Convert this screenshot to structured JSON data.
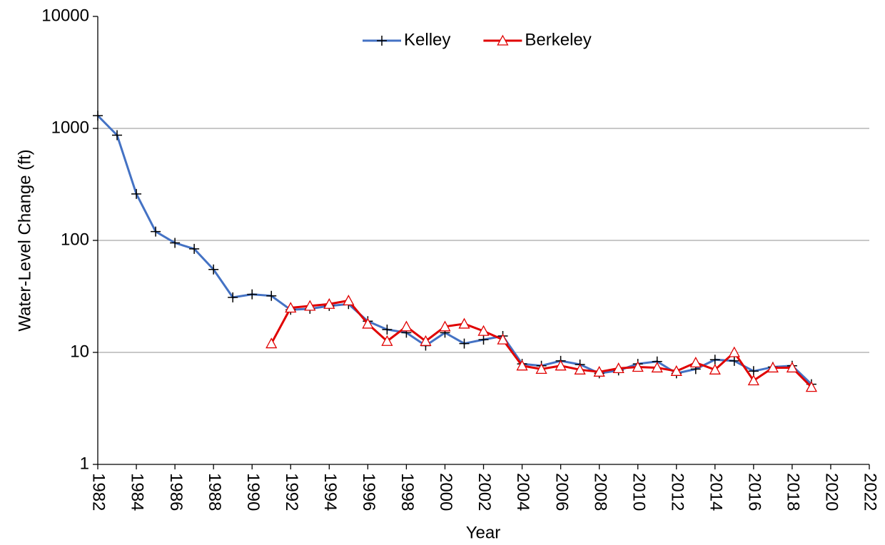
{
  "chart_data": {
    "type": "line",
    "xlabel": "Year",
    "ylabel": "Water-Level Change (ft)",
    "x": [
      1982,
      1983,
      1984,
      1985,
      1986,
      1987,
      1988,
      1989,
      1990,
      1991,
      1992,
      1993,
      1994,
      1995,
      1996,
      1997,
      1998,
      1999,
      2000,
      2001,
      2002,
      2003,
      2004,
      2005,
      2006,
      2007,
      2008,
      2009,
      2010,
      2011,
      2012,
      2013,
      2014,
      2015,
      2016,
      2017,
      2018,
      2019
    ],
    "series": [
      {
        "name": "Kelley",
        "color": "#4472c4",
        "marker": "plus",
        "values": [
          1300,
          870,
          260,
          120,
          95,
          84,
          55,
          31,
          33,
          32,
          24,
          24.5,
          26,
          27,
          19,
          16,
          15,
          11.5,
          15,
          12,
          13,
          14,
          7.9,
          7.6,
          8.4,
          7.8,
          6.5,
          6.9,
          7.9,
          8.3,
          6.5,
          7.1,
          8.6,
          8.4,
          6.8,
          7.4,
          7.6,
          5.2
        ]
      },
      {
        "name": "Berkeley",
        "color": "#e00000",
        "marker": "triangle",
        "values": [
          null,
          null,
          null,
          null,
          null,
          null,
          null,
          null,
          null,
          12,
          25,
          26,
          27,
          29,
          18,
          12.6,
          17,
          12.6,
          17,
          18,
          15.5,
          13,
          7.6,
          7.1,
          7.6,
          7.0,
          6.7,
          7.2,
          7.4,
          7.3,
          6.8,
          8.1,
          7.0,
          10,
          5.6,
          7.3,
          7.3,
          4.9
        ]
      }
    ],
    "xlim": [
      1982,
      2022
    ],
    "xticks": [
      1982,
      1984,
      1986,
      1988,
      1990,
      1992,
      1994,
      1996,
      1998,
      2000,
      2002,
      2004,
      2006,
      2008,
      2010,
      2012,
      2014,
      2016,
      2018,
      2020,
      2022
    ],
    "ylim": [
      1,
      10000
    ],
    "yticks": [
      1,
      10,
      100,
      1000,
      10000
    ],
    "ylog": true,
    "grid": true,
    "legend": "top"
  }
}
